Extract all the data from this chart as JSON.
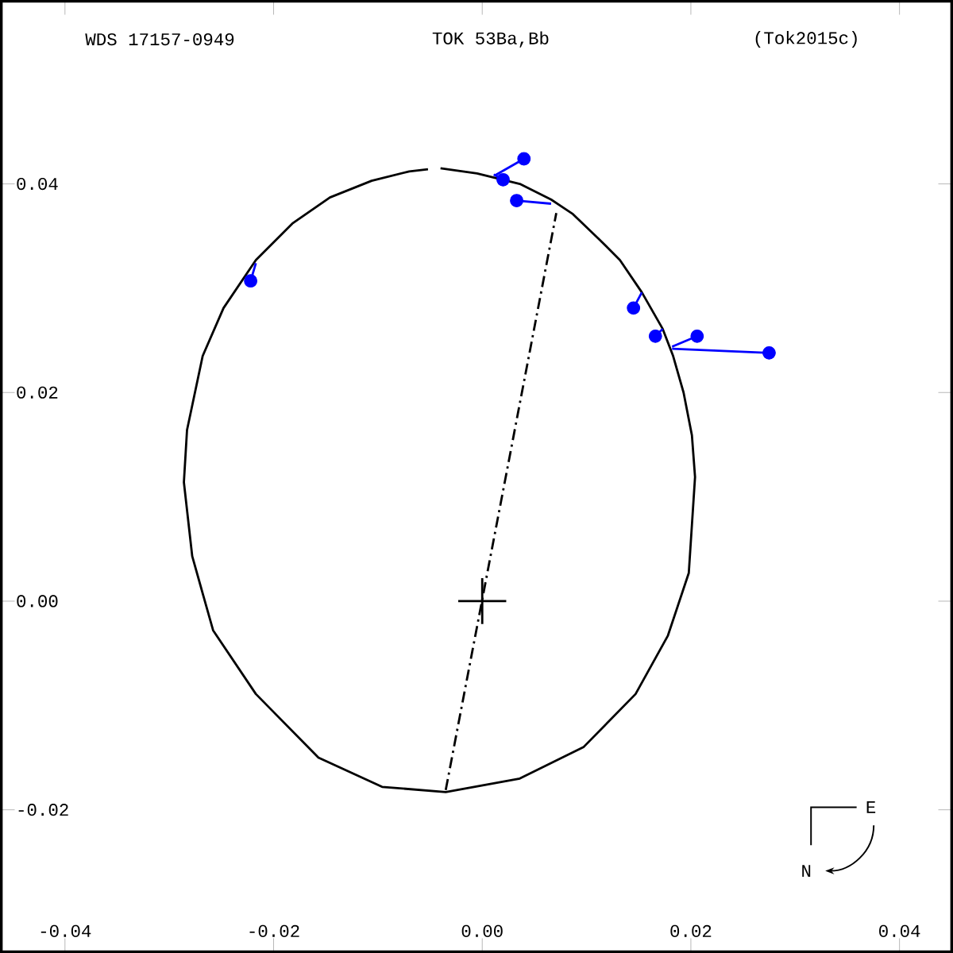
{
  "chart_data": {
    "type": "line",
    "title": "WDS 17157-0949",
    "subtitle": "TOK  53Ba,Bb",
    "annotations": [
      "(Tok2015c)",
      "E",
      "N"
    ],
    "xlim": [
      -0.0461,
      0.045
    ],
    "ylim": [
      -0.0336,
      0.0575
    ],
    "xticks": [
      -0.04,
      -0.02,
      {
        "value": 0,
        "label": "0.00"
      },
      0.02,
      0.04
    ],
    "yticks": [
      -0.02,
      {
        "value": 0,
        "label": "0.00"
      },
      0.02,
      0.04
    ],
    "grid": false,
    "series": [
      {
        "color": "#000000",
        "marker": "none",
        "line_style": "solid",
        "x": [
          -0.004,
          -0.0005,
          0.0036,
          0.0066,
          0.0087,
          0.0112,
          0.0132,
          0.0153,
          0.0173,
          0.0183,
          0.0193,
          0.0201,
          0.0204,
          0.0198,
          0.0178,
          0.0147,
          0.0097,
          0.0036,
          -0.0035,
          -0.0096,
          -0.0157,
          -0.0217,
          -0.0258,
          -0.0278,
          -0.0286,
          -0.0283,
          -0.0268,
          -0.0248,
          -0.0217,
          -0.0182,
          -0.0146,
          -0.0106,
          -0.007,
          -0.0052
        ],
        "values": [
          0.0415,
          0.041,
          0.04,
          0.0385,
          0.0371,
          0.0347,
          0.0327,
          0.0296,
          0.0261,
          0.0235,
          0.02,
          0.0159,
          0.0119,
          0.0027,
          -0.0033,
          -0.0089,
          -0.014,
          -0.017,
          -0.0183,
          -0.0178,
          -0.015,
          -0.0089,
          -0.0028,
          0.0043,
          0.0114,
          0.0164,
          0.0235,
          0.0281,
          0.0327,
          0.0362,
          0.0387,
          0.0403,
          0.0412,
          0.0414
        ]
      },
      {
        "color": "#000000",
        "marker": "none",
        "line_style": "dashdot",
        "x": [
          -0.0035,
          0.0071
        ],
        "values": [
          -0.0181,
          0.0372
        ]
      },
      {
        "color": "#0000ff",
        "marker": "none",
        "line_style": "solid",
        "x": [
          -0.0222,
          -0.0217,
          null,
          0.004,
          0.0012,
          null,
          0.002,
          0.0011,
          null,
          0.0033,
          0.0066,
          null,
          0.0145,
          0.0153,
          null,
          0.0166,
          0.0173,
          null,
          0.0206,
          0.0182,
          null,
          0.0275,
          0.0182
        ],
        "values": [
          0.0307,
          0.0324,
          null,
          0.0424,
          0.0408,
          null,
          0.0404,
          0.0409,
          null,
          0.0384,
          0.0381,
          null,
          0.0281,
          0.0296,
          null,
          0.0254,
          0.0261,
          null,
          0.0254,
          0.0244,
          null,
          0.0238,
          0.0242
        ]
      },
      {
        "type": "scatter",
        "color": "#0000ff",
        "marker": "circle",
        "x": [
          -0.0222,
          0.004,
          0.002,
          0.0033,
          0.0145,
          0.0166,
          0.0206,
          0.0275
        ],
        "values": [
          0.0307,
          0.0424,
          0.0404,
          0.0384,
          0.0281,
          0.0254,
          0.0254,
          0.0238
        ]
      },
      {
        "color": "#000000",
        "marker": "none",
        "line_style": "solid",
        "x": [
          -0.0023,
          0.0023,
          null,
          0,
          0
        ],
        "values": [
          0,
          0,
          null,
          -0.0022,
          0.0022
        ]
      }
    ]
  }
}
